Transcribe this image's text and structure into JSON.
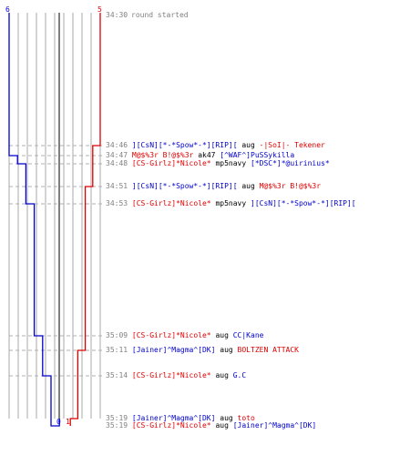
{
  "score": {
    "blue_start": "6",
    "red_start": "5",
    "blue_end": "0",
    "red_end": "1"
  },
  "colors": {
    "blue": "#0000cc",
    "red": "#dd0000",
    "grid": "#aaaaaa",
    "center": "#555555",
    "text": "#808080"
  },
  "header": {
    "time": "34:30",
    "text": "round started"
  },
  "events": [
    {
      "time": "34:46",
      "killer": "][CsN][*-*Spow*-*][RIP][",
      "killer_team": "blue",
      "weapon": "aug",
      "victim": "-|SoI|- Tekener",
      "victim_team": "red"
    },
    {
      "time": "34:47",
      "killer": "M@$%3r B!@$%3r",
      "killer_team": "red",
      "weapon": "ak47",
      "victim": "[^WAF^]PuSSykilla",
      "victim_team": "blue"
    },
    {
      "time": "34:48",
      "killer": "[CS-Girlz]*Nicole*",
      "killer_team": "red",
      "weapon": "mp5navy",
      "victim": "[*DSC*]*@uirinius*",
      "victim_team": "blue"
    },
    {
      "time": "34:51",
      "killer": "][CsN][*-*Spow*-*][RIP][",
      "killer_team": "blue",
      "weapon": "aug",
      "victim": "M@$%3r B!@$%3r",
      "victim_team": "red"
    },
    {
      "time": "34:53",
      "killer": "[CS-Girlz]*Nicole*",
      "killer_team": "red",
      "weapon": "mp5navy",
      "victim": "][CsN][*-*Spow*-*][RIP][",
      "victim_team": "blue"
    },
    {
      "time": "35:09",
      "killer": "[CS-Girlz]*Nicole*",
      "killer_team": "red",
      "weapon": "aug",
      "victim": "CC|Kane",
      "victim_team": "blue"
    },
    {
      "time": "35:11",
      "killer": "[Jainer]^Magma^[DK]",
      "killer_team": "blue",
      "weapon": "aug",
      "victim": "BOLTZEN ATTACK",
      "victim_team": "red"
    },
    {
      "time": "35:14",
      "killer": "[CS-Girlz]*Nicole*",
      "killer_team": "red",
      "weapon": "aug",
      "victim": "G.C",
      "victim_team": "blue"
    },
    {
      "time": "35:19",
      "killer": "[Jainer]^Magma^[DK]",
      "killer_team": "blue",
      "weapon": "aug",
      "victim": "toto",
      "victim_team": "red"
    },
    {
      "time": "35:19",
      "killer": "[CS-Girlz]*Nicole*",
      "killer_team": "red",
      "weapon": "aug",
      "victim": "[Jainer]^Magma^[DK]",
      "victim_team": "blue"
    }
  ],
  "chart_data": {
    "type": "line",
    "x_label": "",
    "y_label": "",
    "x": [
      "34:30",
      "34:46",
      "34:47",
      "34:48",
      "34:51",
      "34:53",
      "35:09",
      "35:11",
      "35:14",
      "35:19",
      "35:19"
    ],
    "series": [
      {
        "values": [
          6,
          6,
          5,
          4,
          4,
          3,
          2,
          2,
          1,
          1,
          0
        ],
        "color": "#0000cc"
      },
      {
        "values": [
          5,
          4,
          4,
          4,
          3,
          3,
          3,
          2,
          2,
          1,
          1
        ],
        "color": "#dd0000"
      }
    ],
    "ylim": [
      0,
      6
    ]
  }
}
